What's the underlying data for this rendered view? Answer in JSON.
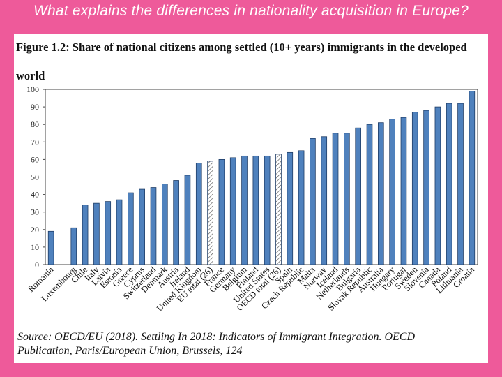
{
  "slide": {
    "title": "What explains the differences in nationality acquisition in Europe?",
    "background_color": "#ee5a9a"
  },
  "figure": {
    "title_line1": "Figure 1.2: Share of national citizens among settled (10+ years) immigrants in the developed",
    "title_line2": "world",
    "source_line1": "Source:  OECD/EU  (2018).  Settling  In  2018:  Indicators  of  Immigrant  Integration.  OECD",
    "source_line2": "Publication, Paris/European Union, Brussels, 124"
  },
  "chart_data": {
    "type": "bar",
    "title": "",
    "xlabel": "",
    "ylabel": "",
    "ylim": [
      0,
      100
    ],
    "yticks": [
      0,
      10,
      20,
      30,
      40,
      50,
      60,
      70,
      80,
      90,
      100
    ],
    "grid": false,
    "bar_color": "#4f81bd",
    "highlight_style": "hatched",
    "categories": [
      "Romania",
      "Luxembourg",
      "Chile",
      "Italy",
      "Latvia",
      "Estonia",
      "Greece",
      "Cyprus",
      "Switzerland",
      "Denmark",
      "Austria",
      "Ireland",
      "United Kingdom",
      "EU total (26)",
      "France",
      "Germany",
      "Belgium",
      "Finland",
      "United States",
      "OECD total (26)",
      "Spain",
      "Czech Republic",
      "Malta",
      "Norway",
      "Iceland",
      "Netherlands",
      "Bulgaria",
      "Slovak Republic",
      "Australia",
      "Hungary",
      "Portugal",
      "Sweden",
      "Slovenia",
      "Canada",
      "Poland",
      "Lithuania",
      "Croatia"
    ],
    "values": [
      19,
      21,
      34,
      35,
      36,
      37,
      41,
      43,
      44,
      46,
      48,
      51,
      58,
      59,
      60,
      61,
      62,
      62,
      62,
      63,
      64,
      65,
      72,
      73,
      75,
      75,
      78,
      80,
      81,
      83,
      84,
      87,
      88,
      90,
      92,
      92,
      99
    ],
    "highlighted": [
      "EU total (26)",
      "OECD total (26)"
    ],
    "blank_slots_after": [
      "Romania"
    ]
  }
}
